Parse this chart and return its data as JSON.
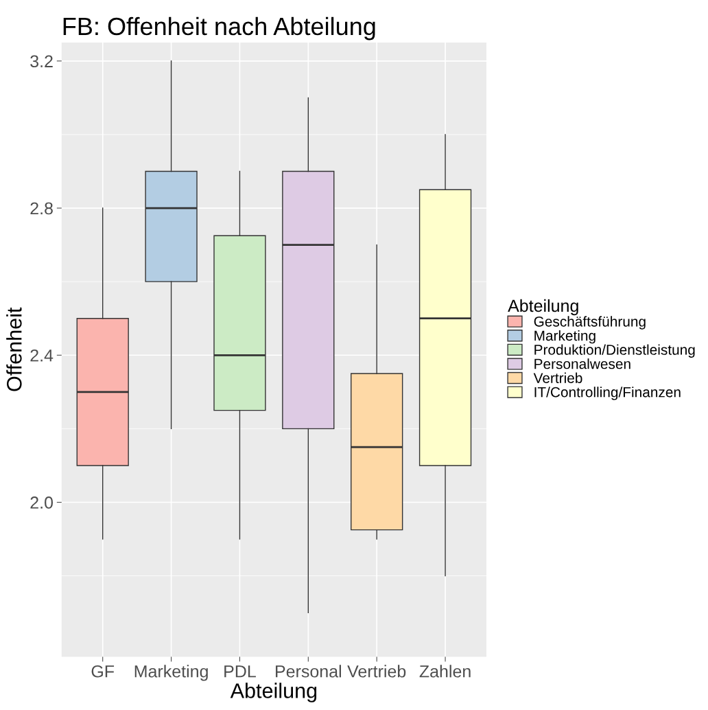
{
  "chart_data": {
    "type": "box",
    "title": "FB: Offenheit nach Abteilung",
    "xlabel": "Abteilung",
    "ylabel": "Offenheit",
    "legend_title": "Abteilung",
    "legend": "right",
    "grid": true,
    "categories": [
      "GF",
      "Marketing",
      "PDL",
      "Personal",
      "Vertrieb",
      "Zahlen"
    ],
    "ylim": [
      1.58,
      3.25
    ],
    "yticks": [
      {
        "value": 1.8,
        "label": null
      },
      {
        "value": 2.0,
        "label": "2.0"
      },
      {
        "value": 2.2,
        "label": null
      },
      2.4,
      {
        "value": 2.6,
        "label": null
      },
      2.8,
      {
        "value": 3.0,
        "label": null
      },
      3.2
    ],
    "series": [
      {
        "name": "Geschäftsführung",
        "color": "#fbb4ae",
        "boxes": [
          {
            "low": 1.9,
            "q1": 2.1,
            "median": 2.3,
            "q3": 2.5,
            "high": 2.8
          },
          null,
          null,
          null,
          null,
          null
        ]
      },
      {
        "name": "Marketing",
        "color": "#b3cde3",
        "boxes": [
          null,
          {
            "low": 2.2,
            "q1": 2.6,
            "median": 2.8,
            "q3": 2.9,
            "high": 3.2
          },
          null,
          null,
          null,
          null
        ]
      },
      {
        "name": "Produktion/Dienstleistung",
        "color": "#ccebc5",
        "boxes": [
          null,
          null,
          {
            "low": 1.9,
            "q1": 2.25,
            "median": 2.4,
            "q3": 2.725,
            "high": 2.9
          },
          null,
          null,
          null
        ]
      },
      {
        "name": "Personalwesen",
        "color": "#decbe4",
        "boxes": [
          null,
          null,
          null,
          {
            "low": 1.7,
            "q1": 2.2,
            "median": 2.7,
            "q3": 2.9,
            "high": 3.1
          },
          null,
          null
        ]
      },
      {
        "name": "Vertrieb",
        "color": "#fed9a6",
        "boxes": [
          null,
          null,
          null,
          null,
          {
            "low": 1.9,
            "q1": 1.925,
            "median": 2.15,
            "q3": 2.35,
            "high": 2.7
          },
          null
        ]
      },
      {
        "name": "IT/Controlling/Finanzen",
        "color": "#ffffcc",
        "boxes": [
          null,
          null,
          null,
          null,
          null,
          {
            "low": 1.8,
            "q1": 2.1,
            "median": 2.5,
            "q3": 2.85,
            "high": 3.0
          }
        ]
      }
    ]
  }
}
